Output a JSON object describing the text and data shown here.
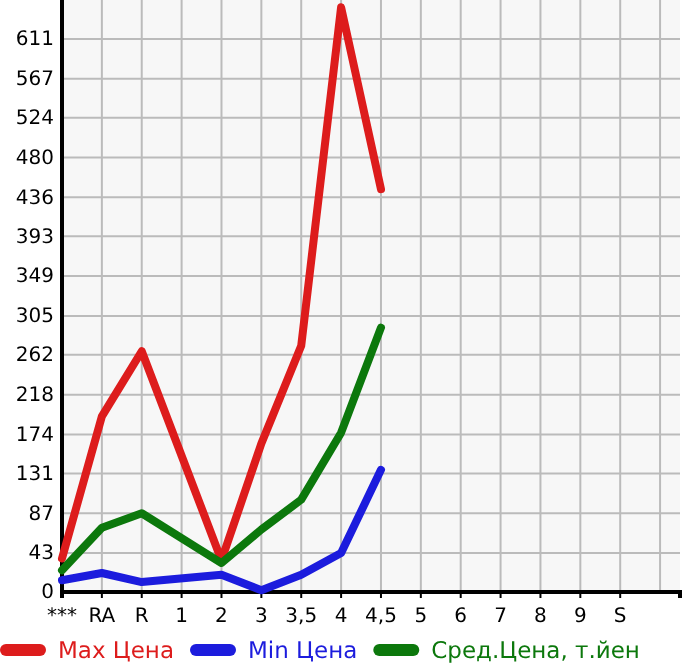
{
  "chart_data": {
    "type": "line",
    "categories": [
      "***",
      "RA",
      "R",
      "1",
      "2",
      "3",
      "3,5",
      "4",
      "4,5",
      "5",
      "6",
      "7",
      "8",
      "9",
      "S"
    ],
    "series": [
      {
        "name": "Max Цена",
        "color": "#dd1c1c",
        "values": [
          37,
          194,
          266,
          null,
          35,
          164,
          272,
          646,
          445,
          null,
          null,
          null,
          null,
          null,
          null
        ]
      },
      {
        "name": "Min Цена",
        "color": "#1c1cdd",
        "values": [
          13,
          21,
          11,
          null,
          19,
          2,
          19,
          43,
          135,
          null,
          null,
          null,
          null,
          null,
          null
        ]
      },
      {
        "name": "Сред.Цена, т.йен",
        "color": "#0c780c",
        "values": [
          24,
          71,
          87,
          null,
          32,
          69,
          102,
          176,
          292,
          null,
          null,
          null,
          null,
          null,
          null
        ]
      }
    ],
    "ylim": [
      0,
      654
    ],
    "yticks": [
      0,
      43,
      87,
      131,
      174,
      218,
      262,
      305,
      349,
      393,
      436,
      480,
      524,
      567,
      611
    ],
    "grid": true,
    "legend": "bottom",
    "marker": "none",
    "line_style": "solid"
  }
}
